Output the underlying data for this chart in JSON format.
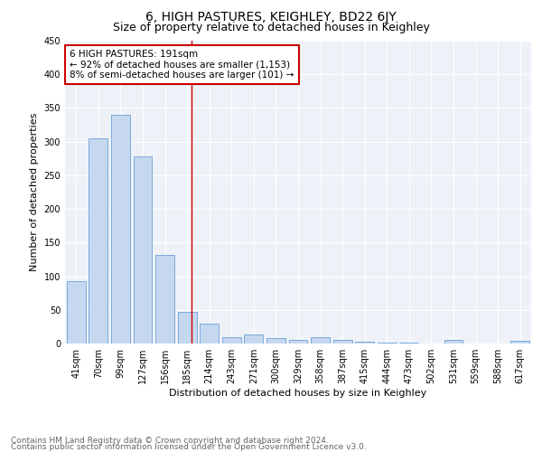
{
  "title": "6, HIGH PASTURES, KEIGHLEY, BD22 6JY",
  "subtitle": "Size of property relative to detached houses in Keighley",
  "xlabel": "Distribution of detached houses by size in Keighley",
  "ylabel": "Number of detached properties",
  "footnote1": "Contains HM Land Registry data © Crown copyright and database right 2024.",
  "footnote2": "Contains public sector information licensed under the Open Government Licence v3.0.",
  "categories": [
    "41sqm",
    "70sqm",
    "99sqm",
    "127sqm",
    "156sqm",
    "185sqm",
    "214sqm",
    "243sqm",
    "271sqm",
    "300sqm",
    "329sqm",
    "358sqm",
    "387sqm",
    "415sqm",
    "444sqm",
    "473sqm",
    "502sqm",
    "531sqm",
    "559sqm",
    "588sqm",
    "617sqm"
  ],
  "values": [
    93,
    305,
    340,
    278,
    132,
    47,
    30,
    10,
    13,
    8,
    5,
    10,
    5,
    3,
    1,
    1,
    0,
    5,
    0,
    0,
    4
  ],
  "bar_color": "#c5d8f0",
  "bar_edge_color": "#6a9fd8",
  "annotation_line1": "6 HIGH PASTURES: 191sqm",
  "annotation_line2": "← 92% of detached houses are smaller (1,153)",
  "annotation_line3": "8% of semi-detached houses are larger (101) →",
  "annotation_box_color": "#cc0000",
  "vline_color": "#cc0000",
  "ylim": [
    0,
    450
  ],
  "yticks": [
    0,
    50,
    100,
    150,
    200,
    250,
    300,
    350,
    400,
    450
  ],
  "background_color": "#eef2f8",
  "grid_color": "#ffffff",
  "title_fontsize": 10,
  "subtitle_fontsize": 9,
  "axis_label_fontsize": 8,
  "tick_fontsize": 7,
  "annotation_fontsize": 7.5,
  "footnote_fontsize": 6.5
}
